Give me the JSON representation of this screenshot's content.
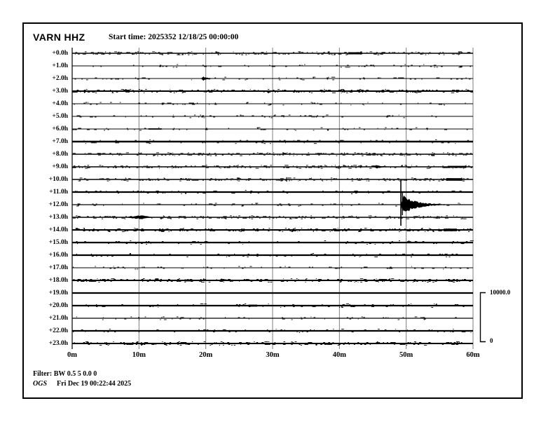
{
  "header": {
    "station": "VARN HHZ",
    "start_time": "Start time: 2025352 12/18/25 00:00:00"
  },
  "footer": {
    "filter": "Filter: BW 0.5 5 0.0 0",
    "org": "OGS",
    "timestamp": "Fri Dec 19 00:22:44 2025"
  },
  "chart_data": {
    "type": "line",
    "subtype": "helicorder-seismogram",
    "title": "VARN HHZ",
    "start_time": "2025352 12/18/25 00:00:00",
    "xlabel_unit": "minutes",
    "x_tick_labels": [
      "0m",
      "10m",
      "20m",
      "30m",
      "40m",
      "50m",
      "60m"
    ],
    "x_range_minutes": [
      0,
      60
    ],
    "grid": true,
    "grid_color": "#7d7d7d",
    "trace_color": "#000000",
    "background_color": "#ffffff",
    "scale_bar": {
      "top_label": "10000.0",
      "bottom_label": "0"
    },
    "rows": [
      {
        "label": "+0.0h",
        "thickness": 1.4,
        "noise": 2
      },
      {
        "label": "+1.0h",
        "thickness": 1.0,
        "noise": 1
      },
      {
        "label": "+2.0h",
        "thickness": 1.0,
        "noise": 1
      },
      {
        "label": "+3.0h",
        "thickness": 2.0,
        "noise": 2
      },
      {
        "label": "+4.0h",
        "thickness": 1.0,
        "noise": 1
      },
      {
        "label": "+5.0h",
        "thickness": 1.0,
        "noise": 1
      },
      {
        "label": "+6.0h",
        "thickness": 1.0,
        "noise": 1
      },
      {
        "label": "+7.0h",
        "thickness": 2.6,
        "noise": 1
      },
      {
        "label": "+8.0h",
        "thickness": 1.4,
        "noise": 2
      },
      {
        "label": "+9.0h",
        "thickness": 1.4,
        "noise": 2
      },
      {
        "label": "+10.0h",
        "thickness": 1.4,
        "noise": 2
      },
      {
        "label": "+11.0h",
        "thickness": 2.2,
        "noise": 1
      },
      {
        "label": "+12.0h",
        "thickness": 1.2,
        "noise": 1
      },
      {
        "label": "+13.0h",
        "thickness": 1.4,
        "noise": 2
      },
      {
        "label": "+14.0h",
        "thickness": 2.0,
        "noise": 2
      },
      {
        "label": "+15.0h",
        "thickness": 2.2,
        "noise": 1
      },
      {
        "label": "+16.0h",
        "thickness": 2.2,
        "noise": 1
      },
      {
        "label": "+17.0h",
        "thickness": 1.0,
        "noise": 1
      },
      {
        "label": "+18.0h",
        "thickness": 2.0,
        "noise": 2
      },
      {
        "label": "+19.0h",
        "thickness": 2.2,
        "noise": 0
      },
      {
        "label": "+20.0h",
        "thickness": 2.2,
        "noise": 1
      },
      {
        "label": "+21.0h",
        "thickness": 1.2,
        "noise": 1
      },
      {
        "label": "+22.0h",
        "thickness": 2.2,
        "noise": 1
      },
      {
        "label": "+23.0h",
        "thickness": 2.0,
        "noise": 2
      }
    ],
    "events": [
      {
        "row": 0,
        "type": "blob",
        "minute": 41.4,
        "duration": 2.0,
        "amp": 1.5
      },
      {
        "row": 2,
        "type": "spindle",
        "minute": 19.3,
        "duration": 2.2,
        "amp": 2.6
      },
      {
        "row": 6,
        "type": "blob",
        "minute": 11.4,
        "duration": 2.0,
        "amp": 0.9
      },
      {
        "row": 9,
        "type": "spindle",
        "minute": 45.2,
        "duration": 2.6,
        "amp": 2.6
      },
      {
        "row": 9,
        "type": "blob",
        "minute": 56.2,
        "duration": 2.8,
        "amp": 1.4
      },
      {
        "row": 10,
        "type": "spike",
        "minute": 32.1,
        "amp": 3.2
      },
      {
        "row": 10,
        "type": "blob",
        "minute": 56.0,
        "duration": 2.4,
        "amp": 1.8
      },
      {
        "row": 12,
        "type": "major",
        "minute": 49.2,
        "duration": 7.5,
        "amp": 11,
        "spike_up": 34,
        "spike_down": 30,
        "note": "large local event, coda decays over ~8 minutes"
      },
      {
        "row": 13,
        "type": "bump",
        "minute": 7.8,
        "duration": 4.6,
        "amp": 2.2
      },
      {
        "row": 14,
        "type": "blob",
        "minute": 55.6,
        "duration": 2.0,
        "amp": 1.8
      },
      {
        "row": 18,
        "type": "blob",
        "minute": 16.8,
        "duration": 1.2,
        "amp": 1.4
      },
      {
        "row": 20,
        "type": "blob",
        "minute": 26.4,
        "duration": 1.3,
        "amp": 1.4
      }
    ]
  }
}
